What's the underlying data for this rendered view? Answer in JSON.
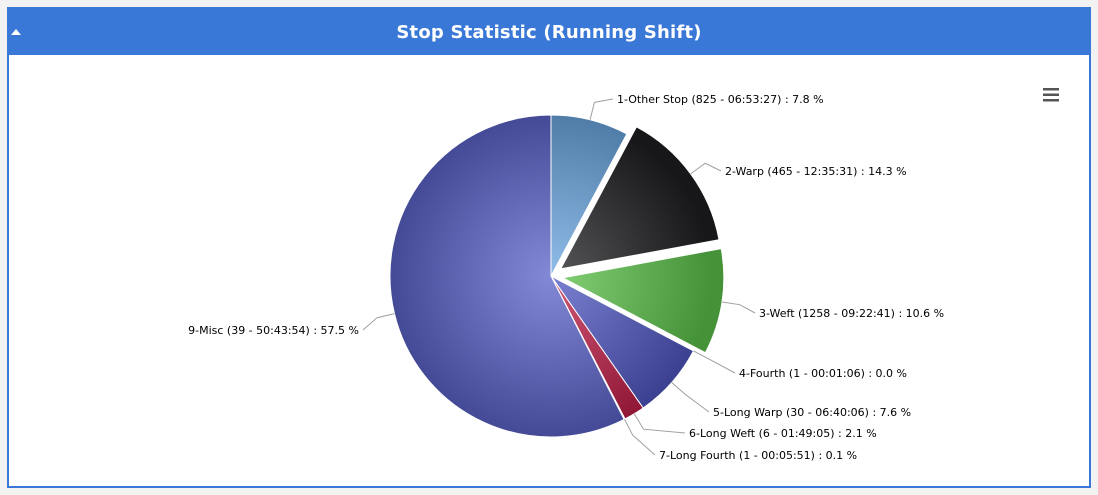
{
  "panel": {
    "title": "Stop Statistic (Running Shift)"
  },
  "icons": {
    "collapse": "caret-up-icon",
    "menu": "hamburger-menu-icon"
  },
  "chart_data": {
    "type": "pie",
    "title": "",
    "series": [
      {
        "slices": [
          {
            "label": "1-Other Stop (825 - 06:53:27) : 7.8 %",
            "value": 7.8,
            "color": "#6aa6e0",
            "sliced": false
          },
          {
            "label": "2-Warp (465 - 12:35:31) : 14.3 %",
            "value": 14.3,
            "color": "#1f1f22",
            "sliced": true
          },
          {
            "label": "3-Weft (1258 - 09:22:41) : 10.6 %",
            "value": 10.6,
            "color": "#5cc24a",
            "sliced": true
          },
          {
            "label": "4-Fourth (1 - 00:01:06) : 0.0 %",
            "value": 0.0,
            "color": "#f0903a",
            "sliced": false
          },
          {
            "label": "5-Long Warp (30 - 06:40:06) : 7.6 %",
            "value": 7.6,
            "color": "#4f57c0",
            "sliced": false
          },
          {
            "label": "6-Long Weft (6 - 01:49:05) : 2.1 %",
            "value": 2.1,
            "color": "#c01f48",
            "sliced": false
          },
          {
            "label": "7-Long Fourth (1 - 00:05:51) : 0.1 %",
            "value": 0.1,
            "color": "#7ea6e8",
            "sliced": false
          },
          {
            "label": "9-Misc (39 - 50:43:54) : 57.5 %",
            "value": 57.5,
            "color": "#5a62c8",
            "sliced": false
          }
        ]
      }
    ]
  }
}
